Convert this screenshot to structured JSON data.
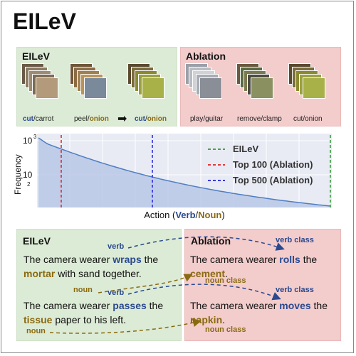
{
  "title": "EILeV",
  "top_left": {
    "label": "EILeV",
    "clips": [
      {
        "verb": "cut",
        "sep": "/",
        "noun": "carrot",
        "verb_highlight": true,
        "noun_highlight": false
      },
      {
        "verb": "peel",
        "sep": "/",
        "noun": "onion",
        "verb_highlight": false,
        "noun_highlight": true
      },
      {
        "verb": "cut",
        "sep": "/",
        "noun": "onion",
        "verb_highlight": true,
        "noun_highlight": true
      }
    ]
  },
  "top_right": {
    "label": "Ablation",
    "clips": [
      {
        "verb": "play",
        "sep": "/",
        "noun": "guitar"
      },
      {
        "verb": "remove",
        "sep": "/",
        "noun": "clamp"
      },
      {
        "verb": "cut",
        "sep": "/",
        "noun": "onion"
      }
    ]
  },
  "chart_data": {
    "type": "area",
    "ylabel": "Frequency",
    "yticks": [
      "10",
      "10"
    ],
    "ytick_exponents": [
      "3",
      "2"
    ],
    "xlabel_parts": [
      "Action (",
      "Verb",
      "/",
      "Noun",
      ")"
    ],
    "legend": [
      {
        "label": "EILeV",
        "color": "#2e9a2e"
      },
      {
        "label": "Top 100 (Ablation)",
        "color": "#e02020"
      },
      {
        "label": "Top 500 (Ablation)",
        "color": "#2020e0"
      }
    ],
    "fill_color": "#b8c8e6",
    "line_color": "#4f7ec0"
  },
  "bottom_left": {
    "label": "EILeV",
    "sentence1": [
      "The camera wearer ",
      "wraps",
      " the ",
      "mortar",
      " with sand together."
    ],
    "sentence2": [
      "The camera wearer ",
      "passes",
      " the ",
      "tissue",
      " paper to his left."
    ],
    "annot_verb": "verb",
    "annot_noun": "noun"
  },
  "bottom_right": {
    "label": "Ablation",
    "sentence1": [
      "The camera wearer ",
      "rolls",
      " the ",
      "cement",
      "."
    ],
    "sentence2": [
      "The camera wearer ",
      "moves",
      " the ",
      "napkin",
      "."
    ],
    "annot_verb_class": "verb class",
    "annot_noun_class": "noun class"
  }
}
